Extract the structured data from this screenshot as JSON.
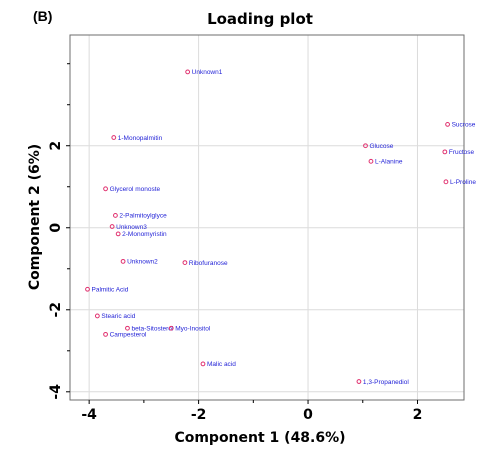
{
  "panel_label": "(B)",
  "chart_data": {
    "type": "scatter",
    "title": "Loading plot",
    "xlabel": "Component 1 (48.6%)",
    "ylabel": "Component 2 (6%)",
    "xlim": [
      -4.35,
      2.85
    ],
    "ylim": [
      -4.2,
      4.7
    ],
    "xticks": [
      -4,
      -2,
      0,
      2
    ],
    "yticks": [
      -4,
      -2,
      0,
      2
    ],
    "minor_xticks": [
      -3,
      -1,
      1
    ],
    "minor_yticks": [
      -3,
      -1,
      1,
      3,
      4
    ],
    "grid": true,
    "marker_color": "#e0306e",
    "label_color": "#1f1fd6",
    "points": [
      {
        "label": "Unknown1",
        "x": -2.2,
        "y": 3.8
      },
      {
        "label": "1-Monopalmitin",
        "x": -3.55,
        "y": 2.2
      },
      {
        "label": "Glycerol monoste",
        "x": -3.7,
        "y": 0.95
      },
      {
        "label": "2-Palmitoylglyce",
        "x": -3.52,
        "y": 0.3
      },
      {
        "label": "Unknown3",
        "x": -3.58,
        "y": 0.03
      },
      {
        "label": "2-Monomyristin",
        "x": -3.47,
        "y": -0.15
      },
      {
        "label": "Unknown2",
        "x": -3.38,
        "y": -0.82
      },
      {
        "label": "Ribofuranose",
        "x": -2.25,
        "y": -0.85
      },
      {
        "label": "Palmitic Acid",
        "x": -4.03,
        "y": -1.5
      },
      {
        "label": "Stearic acid",
        "x": -3.85,
        "y": -2.15
      },
      {
        "label": "beta-Sitosterol",
        "x": -3.3,
        "y": -2.45
      },
      {
        "label": "Myo-Inositol",
        "x": -2.5,
        "y": -2.45
      },
      {
        "label": "Campesterol",
        "x": -3.7,
        "y": -2.6
      },
      {
        "label": "Malic acid",
        "x": -1.92,
        "y": -3.32
      },
      {
        "label": "1,3-Propanediol",
        "x": 0.93,
        "y": -3.75
      },
      {
        "label": "Glucose",
        "x": 1.05,
        "y": 2.0
      },
      {
        "label": "L-Alanine",
        "x": 1.15,
        "y": 1.62
      },
      {
        "label": "Sucrose",
        "x": 2.55,
        "y": 2.52
      },
      {
        "label": "Fructose",
        "x": 2.5,
        "y": 1.85
      },
      {
        "label": "L-Proline",
        "x": 2.52,
        "y": 1.12
      }
    ]
  }
}
